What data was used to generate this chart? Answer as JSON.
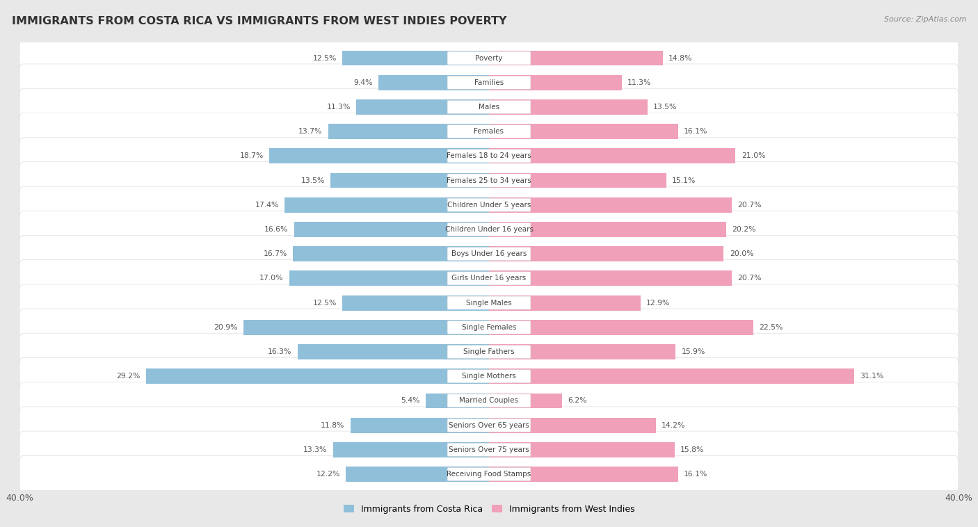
{
  "title": "IMMIGRANTS FROM COSTA RICA VS IMMIGRANTS FROM WEST INDIES POVERTY",
  "source": "Source: ZipAtlas.com",
  "categories": [
    "Poverty",
    "Families",
    "Males",
    "Females",
    "Females 18 to 24 years",
    "Females 25 to 34 years",
    "Children Under 5 years",
    "Children Under 16 years",
    "Boys Under 16 years",
    "Girls Under 16 years",
    "Single Males",
    "Single Females",
    "Single Fathers",
    "Single Mothers",
    "Married Couples",
    "Seniors Over 65 years",
    "Seniors Over 75 years",
    "Receiving Food Stamps"
  ],
  "costa_rica": [
    12.5,
    9.4,
    11.3,
    13.7,
    18.7,
    13.5,
    17.4,
    16.6,
    16.7,
    17.0,
    12.5,
    20.9,
    16.3,
    29.2,
    5.4,
    11.8,
    13.3,
    12.2
  ],
  "west_indies": [
    14.8,
    11.3,
    13.5,
    16.1,
    21.0,
    15.1,
    20.7,
    20.2,
    20.0,
    20.7,
    12.9,
    22.5,
    15.9,
    31.1,
    6.2,
    14.2,
    15.8,
    16.1
  ],
  "costa_rica_color": "#90bfda",
  "west_indies_color": "#f0a0b8",
  "background_color": "#e8e8e8",
  "bar_background": "#ffffff",
  "row_bg_color": "#f5f5f5",
  "xlim": 40.0,
  "legend_label_cr": "Immigrants from Costa Rica",
  "legend_label_wi": "Immigrants from West Indies"
}
